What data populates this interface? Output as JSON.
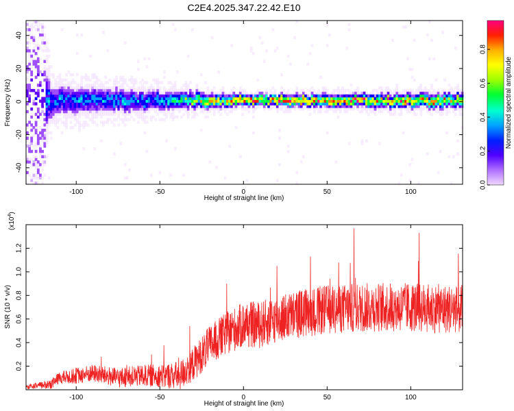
{
  "title": "C2E4.2025.347.22.42.E10",
  "chart_data": [
    {
      "type": "heatmap",
      "xlabel": "Height of straight line (km)",
      "ylabel": "Frequency (Hz)",
      "xlim": [
        -130,
        131
      ],
      "ylim": [
        -50,
        49
      ],
      "x_ticks": [
        -100,
        -50,
        0,
        50,
        100
      ],
      "y_ticks": [
        -40,
        -20,
        0,
        20,
        40
      ],
      "colorbar": {
        "label": "Normalized spectral amplitude",
        "range": [
          0.0,
          0.97
        ],
        "ticks": [
          0.0,
          0.2,
          0.4,
          0.6,
          0.8
        ],
        "tick_labels": [
          "0.0",
          "0.2",
          "0.4",
          "0.6",
          "0.8"
        ],
        "placement": "right"
      },
      "colors": [
        "#f0d8ff",
        "#a050ff",
        "#6000ff",
        "#0000ff",
        "#00a0ff",
        "#00ffd0",
        "#00ff40",
        "#c0ff00",
        "#ffff00",
        "#ff9000",
        "#ff2000",
        "#ff0080"
      ],
      "band_center_hz": 0,
      "band_halfwidth_hz": [
        {
          "x": -130,
          "hz": 49
        },
        {
          "x": -115,
          "hz": 8
        },
        {
          "x": -60,
          "hz": 6
        },
        {
          "x": 0,
          "hz": 3
        },
        {
          "x": 131,
          "hz": 4
        }
      ],
      "peak_amplitude": [
        {
          "x": -110,
          "value": 0.4
        },
        {
          "x": -50,
          "value": 0.45
        },
        {
          "x": -20,
          "value": 0.8
        },
        {
          "x": 0,
          "value": 0.95
        },
        {
          "x": 60,
          "value": 0.95
        },
        {
          "x": 131,
          "value": 0.8
        }
      ],
      "grid": false
    },
    {
      "type": "line",
      "xlabel": "Height of straight line (km)",
      "ylabel": "SNR (10 * v/v)",
      "scale_label": "(x10",
      "scale_exponent": "4",
      "scale_suffix": ")",
      "xlim": [
        -130,
        131
      ],
      "ylim": [
        0.0,
        1.4
      ],
      "x_ticks": [
        -100,
        -50,
        0,
        50,
        100
      ],
      "y_ticks": [
        0.2,
        0.4,
        0.6,
        0.8,
        1.0,
        1.2
      ],
      "y_tick_labels": [
        "0.2",
        "0.4",
        "0.6",
        "0.8",
        "1.0",
        "1.2"
      ],
      "color": "#ee2222",
      "series_mean": [
        {
          "x": -130,
          "y": 0.02
        },
        {
          "x": -115,
          "y": 0.05
        },
        {
          "x": -110,
          "y": 0.1
        },
        {
          "x": -90,
          "y": 0.14
        },
        {
          "x": -75,
          "y": 0.1
        },
        {
          "x": -60,
          "y": 0.12
        },
        {
          "x": -50,
          "y": 0.12
        },
        {
          "x": -38,
          "y": 0.12
        },
        {
          "x": -30,
          "y": 0.22
        },
        {
          "x": -20,
          "y": 0.38
        },
        {
          "x": -10,
          "y": 0.48
        },
        {
          "x": 0,
          "y": 0.55
        },
        {
          "x": 10,
          "y": 0.55
        },
        {
          "x": 20,
          "y": 0.6
        },
        {
          "x": 35,
          "y": 0.65
        },
        {
          "x": 50,
          "y": 0.68
        },
        {
          "x": 75,
          "y": 0.7
        },
        {
          "x": 100,
          "y": 0.7
        },
        {
          "x": 131,
          "y": 0.68
        }
      ],
      "series_spread": [
        {
          "x": -130,
          "y": 0.01
        },
        {
          "x": -100,
          "y": 0.05
        },
        {
          "x": -50,
          "y": 0.07
        },
        {
          "x": -20,
          "y": 0.12
        },
        {
          "x": 0,
          "y": 0.14
        },
        {
          "x": 40,
          "y": 0.15
        },
        {
          "x": 131,
          "y": 0.15
        }
      ],
      "notable_peaks": [
        {
          "x": 66,
          "y": 1.37
        },
        {
          "x": 105,
          "y": 1.33
        },
        {
          "x": 40,
          "y": 1.13
        },
        {
          "x": 20,
          "y": 1.05
        },
        {
          "x": -10,
          "y": 0.9
        },
        {
          "x": -55,
          "y": 0.3
        },
        {
          "x": -85,
          "y": 0.28
        }
      ],
      "grid": false
    }
  ]
}
